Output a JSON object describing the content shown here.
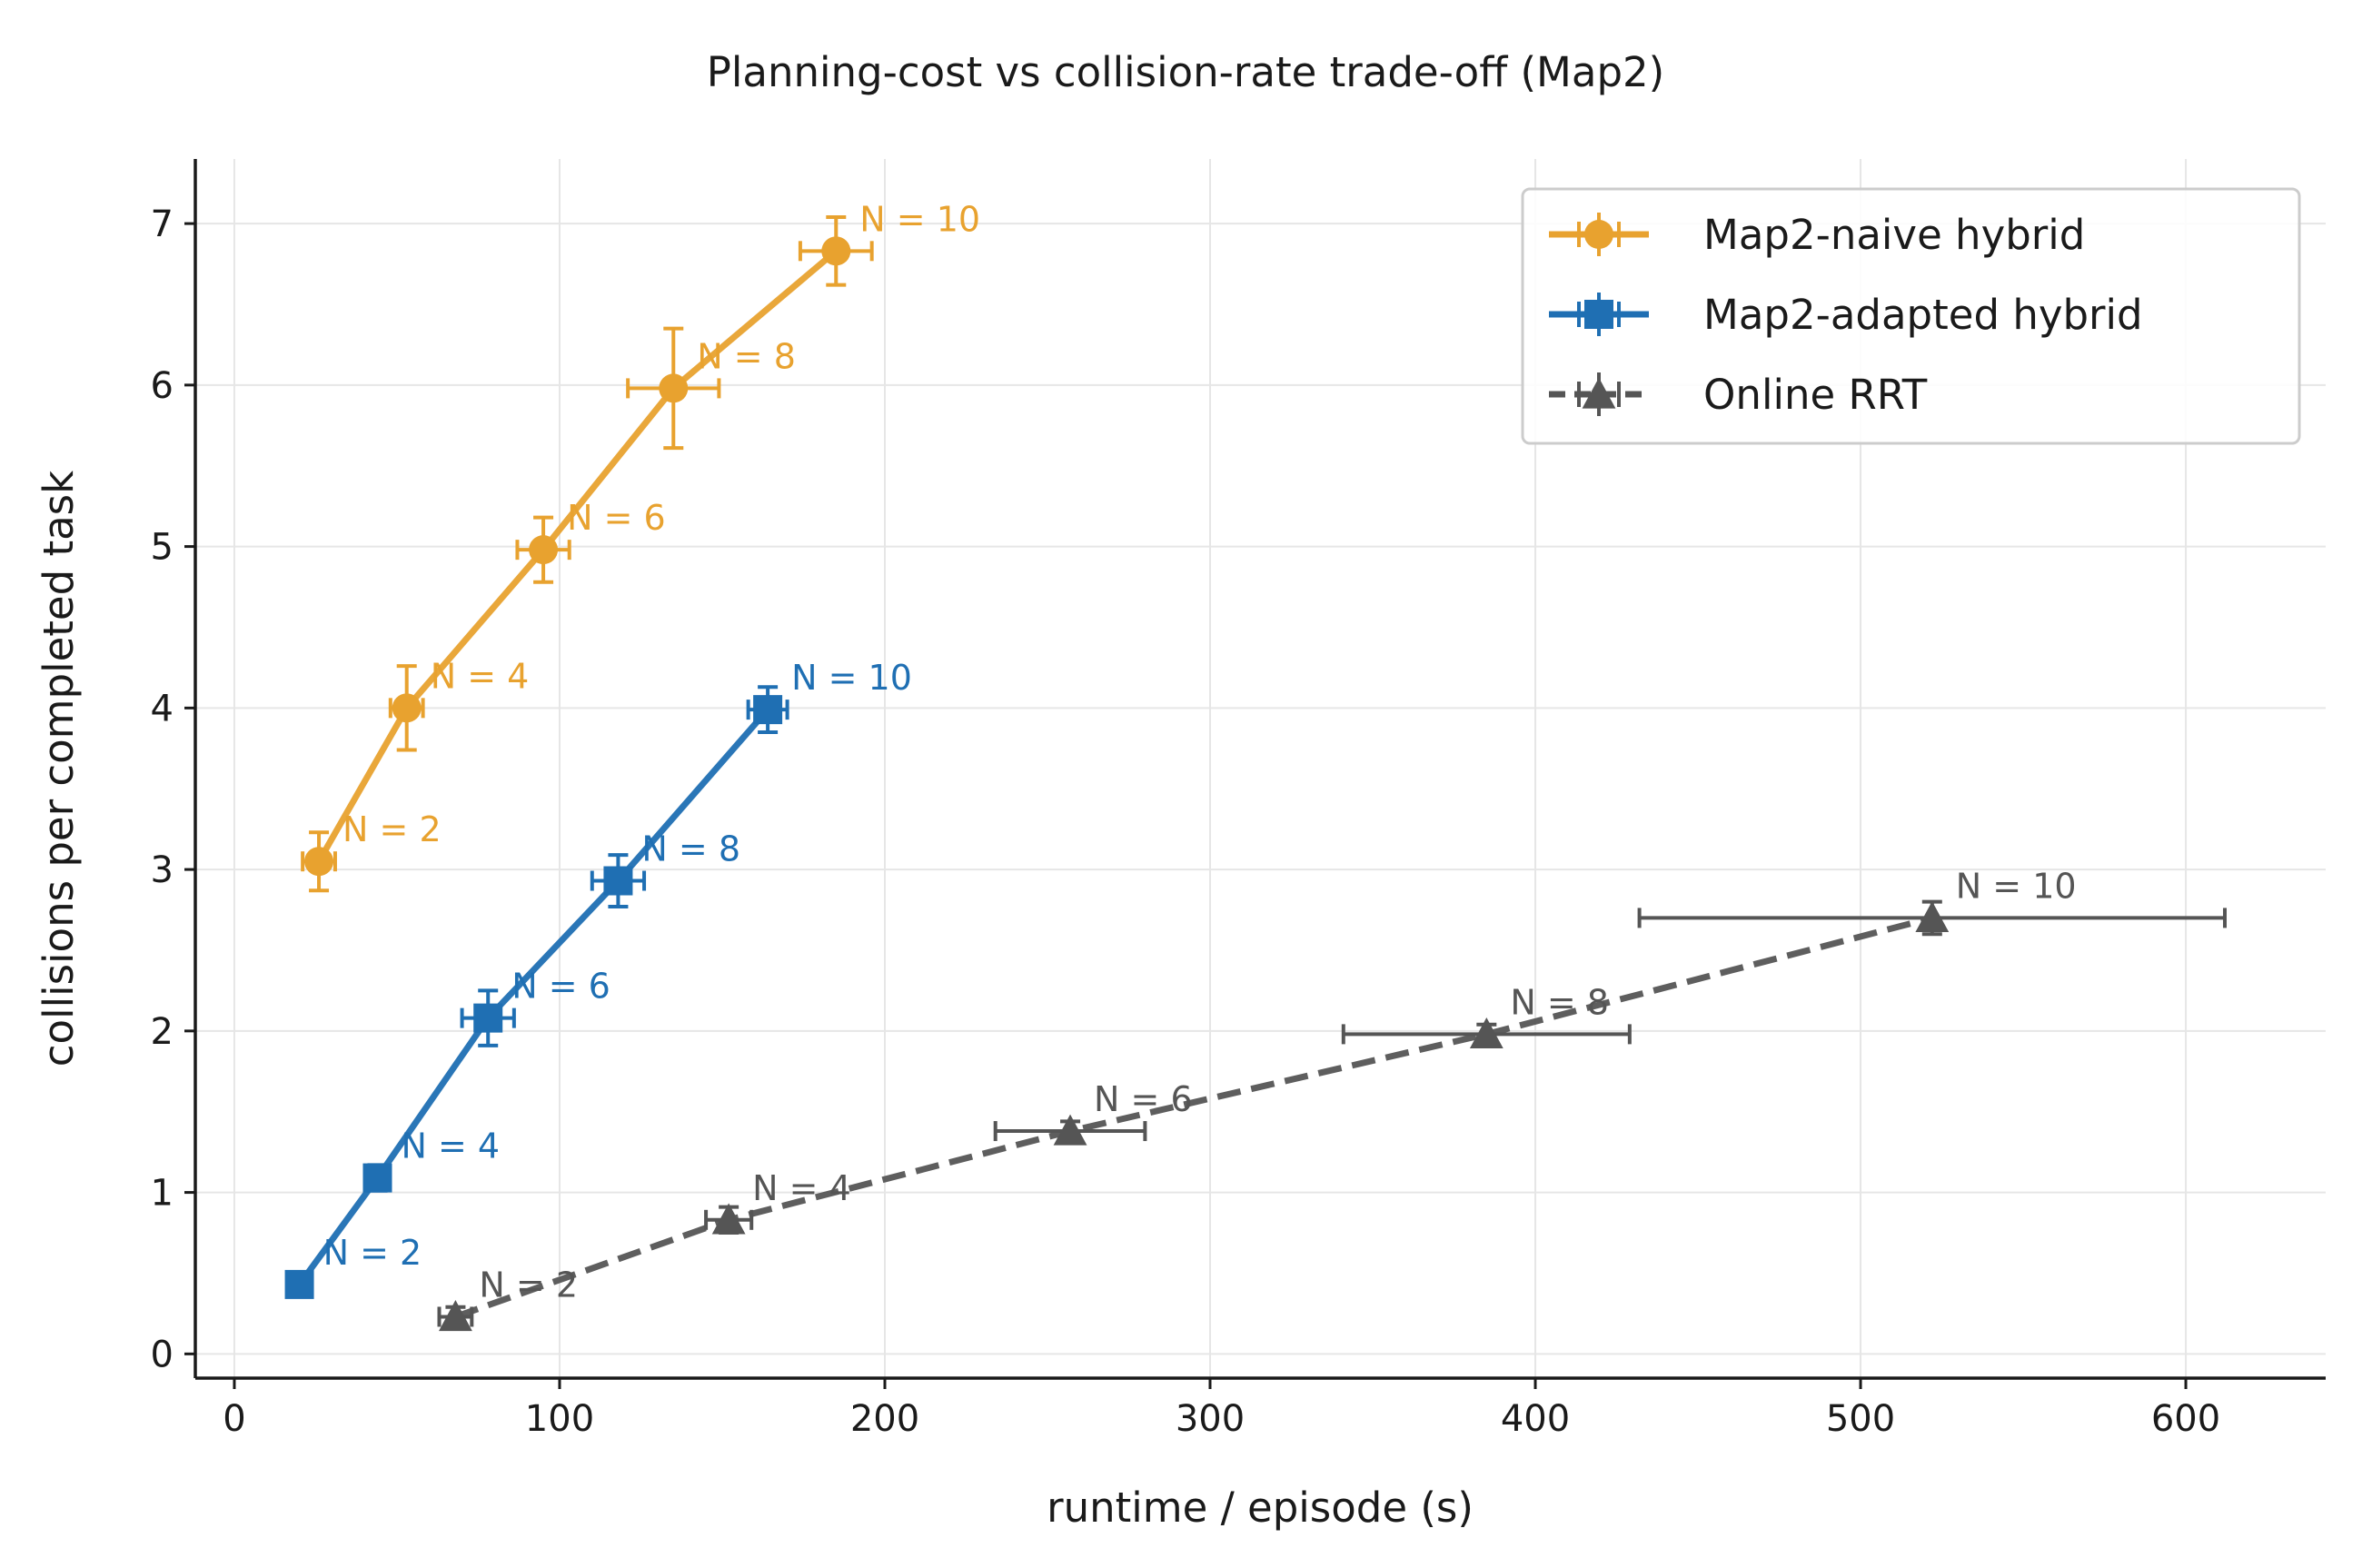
{
  "chart_data": {
    "type": "line",
    "title": "Planning-cost vs collision-rate trade-off (Map2)",
    "xlabel": "runtime / episode (s)",
    "ylabel": "collisions per completed task",
    "xlim": [
      -12,
      643
    ],
    "ylim": [
      -0.15,
      7.4
    ],
    "xticks": [
      0,
      100,
      200,
      300,
      400,
      500,
      600
    ],
    "yticks": [
      0,
      1,
      2,
      3,
      4,
      5,
      6,
      7
    ],
    "grid": true,
    "legend_position": "top-right",
    "series": [
      {
        "name": "Map2-naive hybrid",
        "color": "#E8A22F",
        "marker": "circle",
        "linestyle": "solid",
        "points": [
          {
            "x": 26,
            "y": 3.05,
            "xerr": 5,
            "yerr": 0.18,
            "label": "N = 2"
          },
          {
            "x": 53,
            "y": 4.0,
            "xerr": 5,
            "yerr": 0.26,
            "label": "N = 4"
          },
          {
            "x": 95,
            "y": 4.98,
            "xerr": 8,
            "yerr": 0.2,
            "label": "N = 6"
          },
          {
            "x": 135,
            "y": 5.98,
            "xerr": 14,
            "yerr": 0.37,
            "label": "N = 8"
          },
          {
            "x": 185,
            "y": 6.83,
            "xerr": 11,
            "yerr": 0.21,
            "label": "N = 10"
          }
        ]
      },
      {
        "name": "Map2-adapted hybrid",
        "color": "#1F6FB3",
        "marker": "square",
        "linestyle": "solid",
        "points": [
          {
            "x": 20,
            "y": 0.43,
            "xerr": 3,
            "yerr": 0.05,
            "label": "N = 2"
          },
          {
            "x": 44,
            "y": 1.09,
            "xerr": 3,
            "yerr": 0.08,
            "label": "N = 4"
          },
          {
            "x": 78,
            "y": 2.08,
            "xerr": 8,
            "yerr": 0.17,
            "label": "N = 6"
          },
          {
            "x": 118,
            "y": 2.93,
            "xerr": 8,
            "yerr": 0.16,
            "label": "N = 8"
          },
          {
            "x": 164,
            "y": 3.99,
            "xerr": 6,
            "yerr": 0.14,
            "label": "N = 10"
          }
        ]
      },
      {
        "name": "Online RRT",
        "color": "#555555",
        "marker": "triangle",
        "linestyle": "dashed",
        "points": [
          {
            "x": 68,
            "y": 0.23,
            "xerr": 5,
            "yerr": 0.06,
            "label": "N = 2"
          },
          {
            "x": 152,
            "y": 0.83,
            "xerr": 7,
            "yerr": 0.08,
            "label": "N = 4"
          },
          {
            "x": 257,
            "y": 1.38,
            "xerr": 23,
            "yerr": 0.06,
            "label": "N = 6"
          },
          {
            "x": 385,
            "y": 1.98,
            "xerr": 44,
            "yerr": 0.06,
            "label": "N = 8"
          },
          {
            "x": 522,
            "y": 2.7,
            "xerr": 90,
            "yerr": 0.1,
            "label": "N = 10"
          }
        ]
      }
    ]
  }
}
